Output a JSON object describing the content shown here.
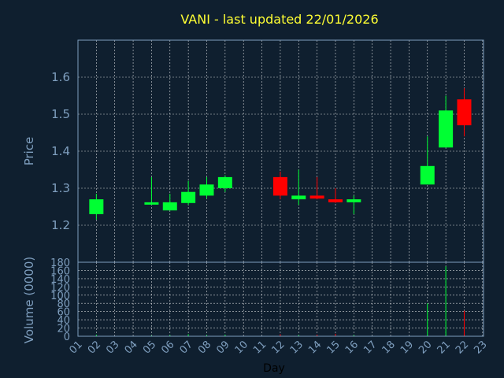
{
  "chart_data": {
    "type": "candlestick",
    "title": "VANI - last updated 22/01/2026",
    "xlabel": "Day",
    "x_ticks": [
      "01",
      "02",
      "03",
      "04",
      "05",
      "06",
      "07",
      "08",
      "09",
      "10",
      "11",
      "12",
      "13",
      "14",
      "15",
      "16",
      "17",
      "18",
      "19",
      "20",
      "21",
      "22",
      "23"
    ],
    "price_panel": {
      "ylabel": "Price",
      "ylim": [
        1.1,
        1.7
      ],
      "yticks": [
        1.2,
        1.3,
        1.4,
        1.5,
        1.6
      ],
      "grid": true
    },
    "volume_panel": {
      "ylabel": "Volume (0000)",
      "ylim": [
        0,
        180
      ],
      "yticks": [
        0,
        20,
        40,
        60,
        80,
        100,
        120,
        140,
        160,
        180
      ],
      "grid": true
    },
    "candles": [
      {
        "day": "02",
        "open": 1.23,
        "high": 1.285,
        "low": 1.215,
        "close": 1.27,
        "volume": 4
      },
      {
        "day": "05",
        "open": 1.26,
        "high": 1.33,
        "low": 1.255,
        "close": 1.262,
        "volume": 2
      },
      {
        "day": "06",
        "open": 1.24,
        "high": 1.285,
        "low": 1.24,
        "close": 1.262,
        "volume": 3
      },
      {
        "day": "07",
        "open": 1.26,
        "high": 1.32,
        "low": 1.255,
        "close": 1.29,
        "volume": 5
      },
      {
        "day": "08",
        "open": 1.28,
        "high": 1.33,
        "low": 1.272,
        "close": 1.31,
        "volume": 3
      },
      {
        "day": "09",
        "open": 1.3,
        "high": 1.335,
        "low": 1.29,
        "close": 1.33,
        "volume": 4
      },
      {
        "day": "12",
        "open": 1.33,
        "high": 1.345,
        "low": 1.27,
        "close": 1.28,
        "volume": 5
      },
      {
        "day": "13",
        "open": 1.27,
        "high": 1.35,
        "low": 1.255,
        "close": 1.28,
        "volume": 3
      },
      {
        "day": "14",
        "open": 1.28,
        "high": 1.33,
        "low": 1.27,
        "close": 1.272,
        "volume": 4
      },
      {
        "day": "15",
        "open": 1.27,
        "high": 1.3,
        "low": 1.26,
        "close": 1.262,
        "volume": 6
      },
      {
        "day": "16",
        "open": 1.262,
        "high": 1.28,
        "low": 1.23,
        "close": 1.27,
        "volume": 3
      },
      {
        "day": "20",
        "open": 1.31,
        "high": 1.44,
        "low": 1.31,
        "close": 1.36,
        "volume": 80
      },
      {
        "day": "21",
        "open": 1.41,
        "high": 1.55,
        "low": 1.41,
        "close": 1.51,
        "volume": 170
      },
      {
        "day": "22",
        "open": 1.54,
        "high": 1.57,
        "low": 1.44,
        "close": 1.47,
        "volume": 62
      }
    ],
    "colors": {
      "background": "#0f1f2f",
      "up": "#00ff33",
      "down": "#ff0000",
      "title": "#ffff33",
      "text": "#7f9fbf",
      "grid": "#ffffff",
      "frame": "#7f9fbf"
    }
  }
}
